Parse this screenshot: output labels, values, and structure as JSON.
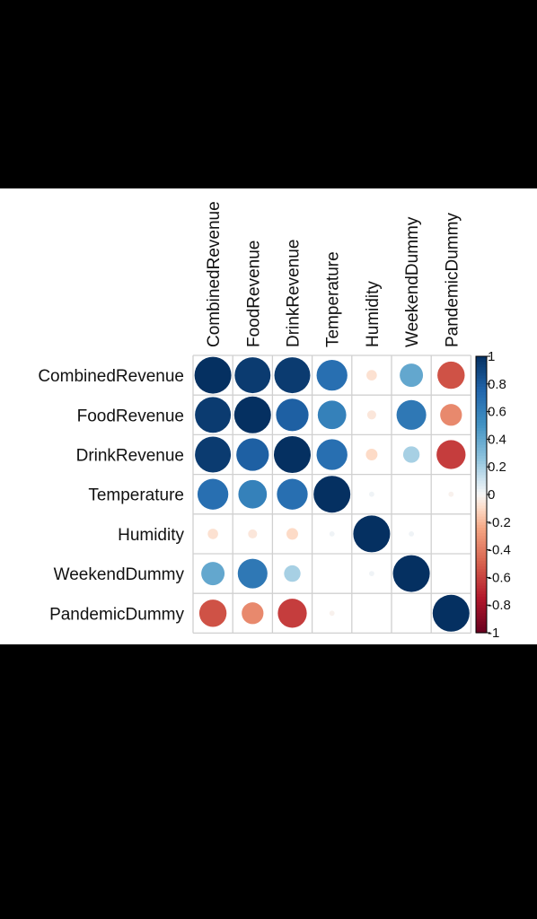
{
  "chart_data": {
    "type": "heatmap",
    "variables": [
      "CombinedRevenue",
      "FoodRevenue",
      "DrinkRevenue",
      "Temperature",
      "Humidity",
      "WeekendDummy",
      "PandemicDummy"
    ],
    "matrix": [
      [
        1.0,
        0.95,
        0.95,
        0.7,
        -0.08,
        0.4,
        -0.55
      ],
      [
        0.95,
        1.0,
        0.78,
        0.6,
        -0.06,
        0.65,
        -0.35
      ],
      [
        0.95,
        0.78,
        1.0,
        0.7,
        -0.1,
        0.2,
        -0.62
      ],
      [
        0.7,
        0.6,
        0.7,
        1.0,
        0.02,
        0.0,
        -0.02
      ],
      [
        -0.08,
        -0.06,
        -0.1,
        0.02,
        1.0,
        0.02,
        0.0
      ],
      [
        0.4,
        0.65,
        0.2,
        0.0,
        0.02,
        1.0,
        0.0
      ],
      [
        -0.55,
        -0.35,
        -0.62,
        -0.02,
        0.0,
        0.0,
        1.0
      ]
    ],
    "colorbar": {
      "min": -1,
      "max": 1,
      "ticks": [
        1,
        0.8,
        0.6,
        0.4,
        0.2,
        0,
        -0.2,
        -0.4,
        -0.6,
        -0.8,
        -1
      ],
      "tick_labels": [
        "1",
        "0.8",
        "0.6",
        "0.4",
        "0.2",
        "0",
        "-0.2",
        "-0.4",
        "-0.6",
        "-0.8",
        "-1"
      ]
    },
    "colors": {
      "negative_end": "#67001F",
      "positive_end": "#053061",
      "mid": "#F7F7F7"
    },
    "grid": true,
    "legend_position": "right"
  }
}
